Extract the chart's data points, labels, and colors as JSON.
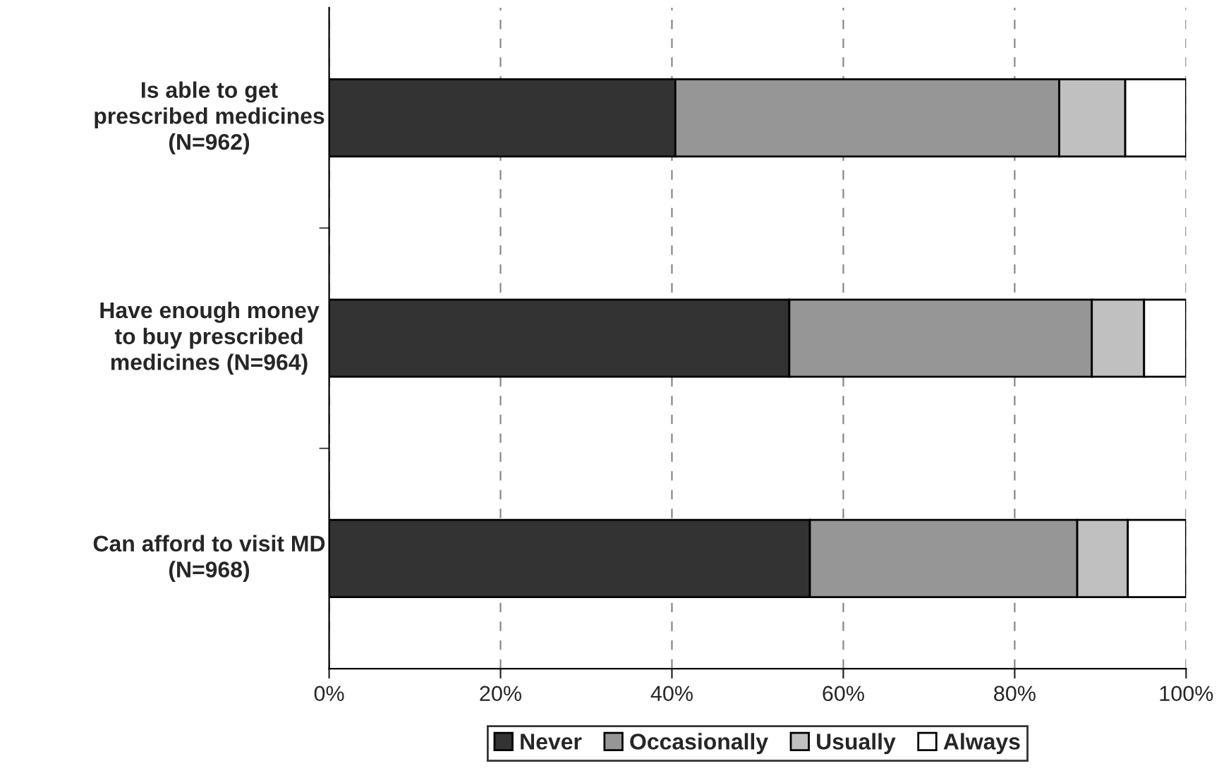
{
  "chart_data": {
    "type": "bar",
    "orientation": "horizontal",
    "stacked": true,
    "categories": [
      "Is able to get prescribed medicines (N=962)",
      "Have enough money to buy prescribed medicines (N=964)",
      "Can afford to visit MD (N=968)"
    ],
    "series": [
      {
        "name": "Never",
        "color": "#333333",
        "values": [
          40.4,
          53.7,
          56.1
        ]
      },
      {
        "name": "Occasionally",
        "color": "#969696",
        "values": [
          44.8,
          35.3,
          31.2
        ]
      },
      {
        "name": "Usually",
        "color": "#c0c0c0",
        "values": [
          7.7,
          6.1,
          5.9
        ]
      },
      {
        "name": "Always",
        "color": "#ffffff",
        "values": [
          7.1,
          4.9,
          6.8
        ]
      }
    ],
    "xlim": [
      0,
      100
    ],
    "xticks": [
      {
        "value": 0,
        "label": "0%"
      },
      {
        "value": 20,
        "label": "20%"
      },
      {
        "value": 40,
        "label": "40%"
      },
      {
        "value": 60,
        "label": "60%"
      },
      {
        "value": 80,
        "label": "80%"
      },
      {
        "value": 100,
        "label": "100%"
      }
    ],
    "grid": "x",
    "line_style": "dashed",
    "legend": "bottom"
  }
}
